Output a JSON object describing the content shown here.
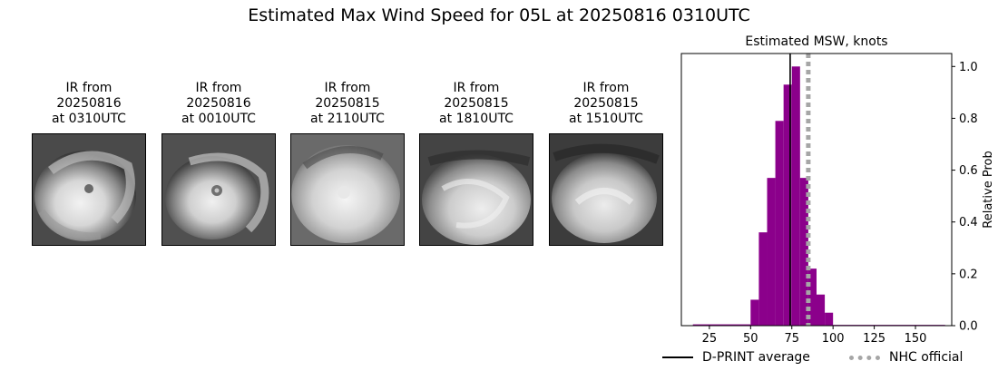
{
  "suptitle": "Estimated Max Wind Speed for 05L at 20250816 0310UTC",
  "ir_panels": [
    {
      "line1": "IR from",
      "line2": "20250816",
      "line3": "at 0310UTC"
    },
    {
      "line1": "IR from",
      "line2": "20250816",
      "line3": "at 0010UTC"
    },
    {
      "line1": "IR from",
      "line2": "20250815",
      "line3": "at 2110UTC"
    },
    {
      "line1": "IR from",
      "line2": "20250815",
      "line3": "at 1810UTC"
    },
    {
      "line1": "IR from",
      "line2": "20250815",
      "line3": "at 1510UTC"
    }
  ],
  "chart_data": {
    "type": "bar",
    "title": "Estimated MSW, knots",
    "ylabel": "Relative Prob",
    "xlim": [
      8,
      172
    ],
    "ylim": [
      0,
      1.05
    ],
    "xticks": [
      25,
      50,
      75,
      100,
      125,
      150
    ],
    "yticks": [
      0.0,
      0.2,
      0.4,
      0.6,
      0.8,
      1.0
    ],
    "ytick_labels": [
      "0.0",
      "0.2",
      "0.4",
      "0.6",
      "0.8",
      "1.0"
    ],
    "bar_color": "#8b008b",
    "bins": [
      {
        "x0": 15,
        "x1": 50,
        "value": 0.005
      },
      {
        "x0": 50,
        "x1": 55,
        "value": 0.1
      },
      {
        "x0": 55,
        "x1": 60,
        "value": 0.36
      },
      {
        "x0": 60,
        "x1": 65,
        "value": 0.57
      },
      {
        "x0": 65,
        "x1": 70,
        "value": 0.79
      },
      {
        "x0": 70,
        "x1": 75,
        "value": 0.93
      },
      {
        "x0": 75,
        "x1": 80,
        "value": 1.0
      },
      {
        "x0": 80,
        "x1": 85,
        "value": 0.57
      },
      {
        "x0": 85,
        "x1": 90,
        "value": 0.22
      },
      {
        "x0": 90,
        "x1": 95,
        "value": 0.12
      },
      {
        "x0": 95,
        "x1": 100,
        "value": 0.05
      },
      {
        "x0": 100,
        "x1": 168,
        "value": 0.003
      }
    ],
    "lines": [
      {
        "name": "D-PRINT average",
        "x": 74,
        "color": "#000000",
        "style": "solid"
      },
      {
        "name": "NHC official",
        "x": 85,
        "color": "#a6a6a6",
        "style": "dotted"
      }
    ],
    "legend_placement": "bottom"
  }
}
